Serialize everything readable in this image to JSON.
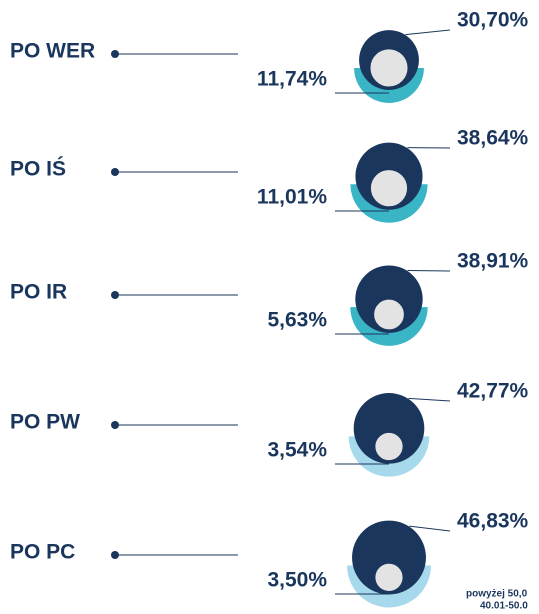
{
  "chart_data": {
    "type": "circles",
    "categories": [
      "PO WER",
      "PO IŚ",
      "PO IR",
      "PO PW",
      "PO PC"
    ],
    "series": [
      {
        "color": "#1b365d",
        "values": [
          30.7,
          38.64,
          38.91,
          42.77,
          46.83
        ],
        "value_labels": [
          "30,70%",
          "38,64%",
          "38,91%",
          "42,77%",
          "46,83%"
        ]
      },
      {
        "colors": [
          "#3ab5c6",
          "#3ab5c6",
          "#3ab5c6",
          "#a6d9ec",
          "#a6d9ec"
        ],
        "values": [
          11.74,
          11.01,
          5.63,
          3.54,
          3.5
        ],
        "value_labels": [
          "11,74%",
          "11,01%",
          "5,63%",
          "3,54%",
          "3,50%"
        ]
      }
    ],
    "annotations": [
      "powyżej 50,0",
      "40.01-50.0"
    ]
  }
}
